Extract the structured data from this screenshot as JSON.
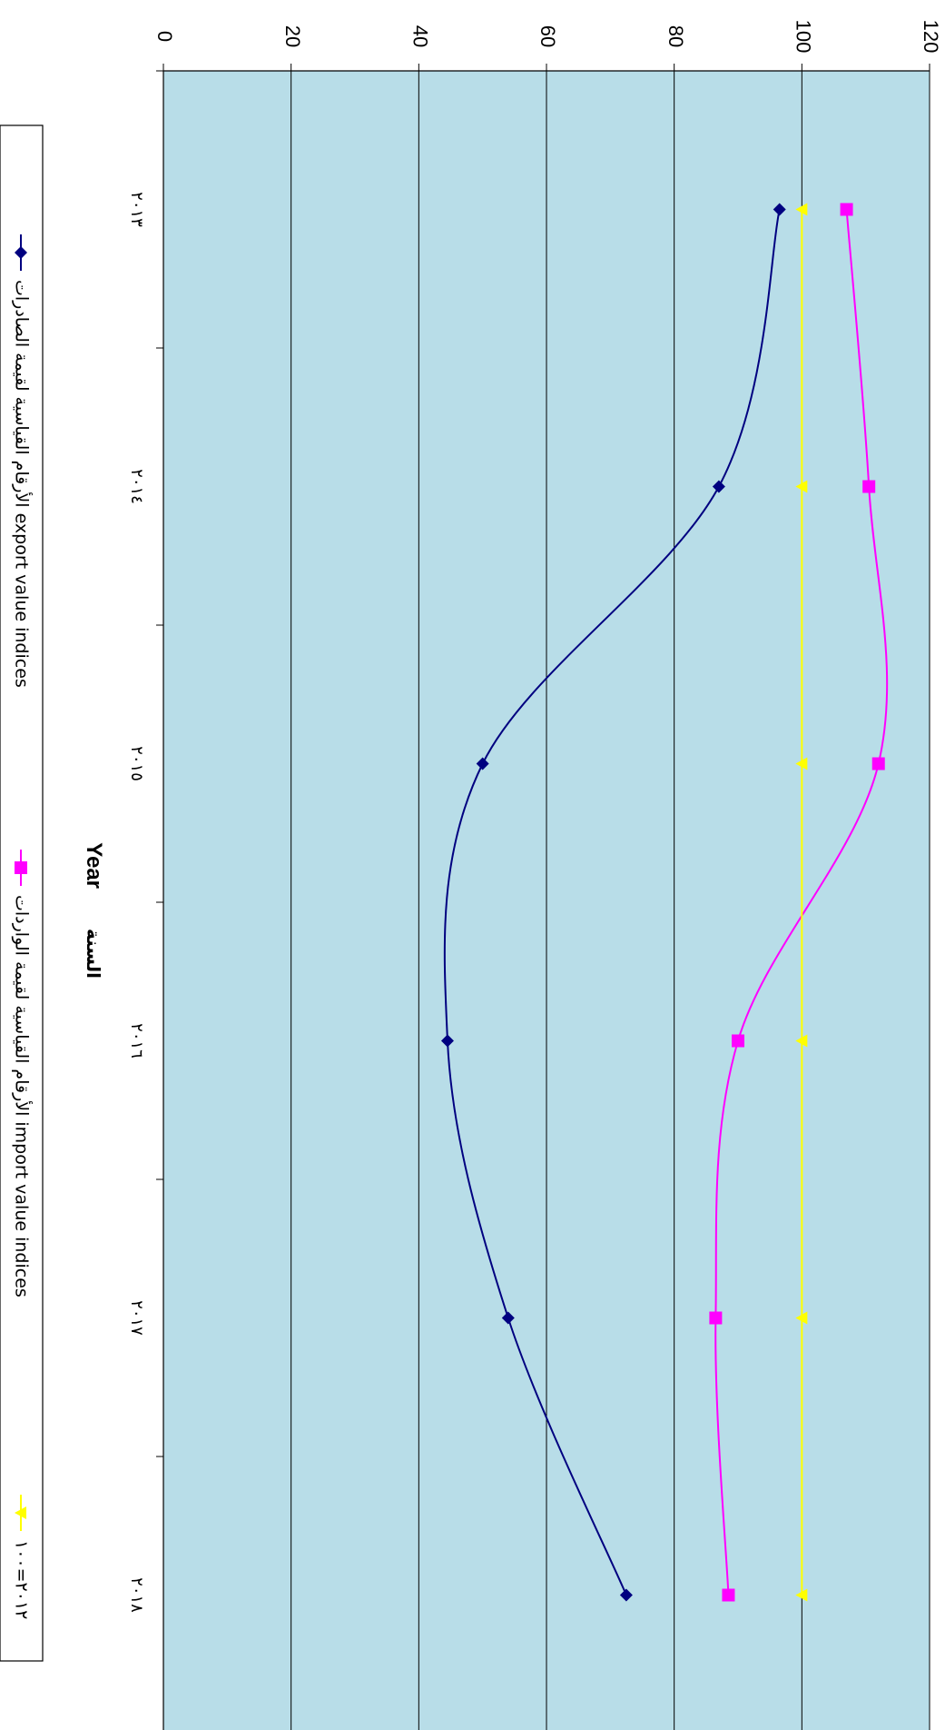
{
  "chart_data": {
    "type": "line",
    "categories": [
      "٢٠١٣",
      "٢٠١٤",
      "٢٠١٥",
      "٢٠١٦",
      "٢٠١٧",
      "٢٠١٨"
    ],
    "series": [
      {
        "name": "الأرقام القياسية لقيمة الصادرات export value indices",
        "values": [
          96.5,
          87,
          50,
          44.5,
          54,
          72.5
        ],
        "color": "#000080",
        "marker": "diamond"
      },
      {
        "name": "الأرقام القياسية لقيمة الواردات import value indices",
        "values": [
          107,
          110.5,
          112,
          90,
          86.5,
          88.5
        ],
        "color": "#FF00FF",
        "marker": "square"
      },
      {
        "name": "٢٠١٢=١٠٠",
        "values": [
          100,
          100,
          100,
          100,
          100,
          100
        ],
        "color": "#FFFF00",
        "marker": "triangle"
      }
    ],
    "ylim": [
      0,
      120
    ],
    "yticks": [
      "0",
      "20",
      "40",
      "60",
      "80",
      "100",
      "120"
    ],
    "xlabel": "Year",
    "xlabel_ar": "السنة",
    "ylabel": "",
    "grid": true,
    "plot_background": "#B8DDE8",
    "legend_position": "bottom",
    "orientation": "rotated-90-clockwise"
  }
}
